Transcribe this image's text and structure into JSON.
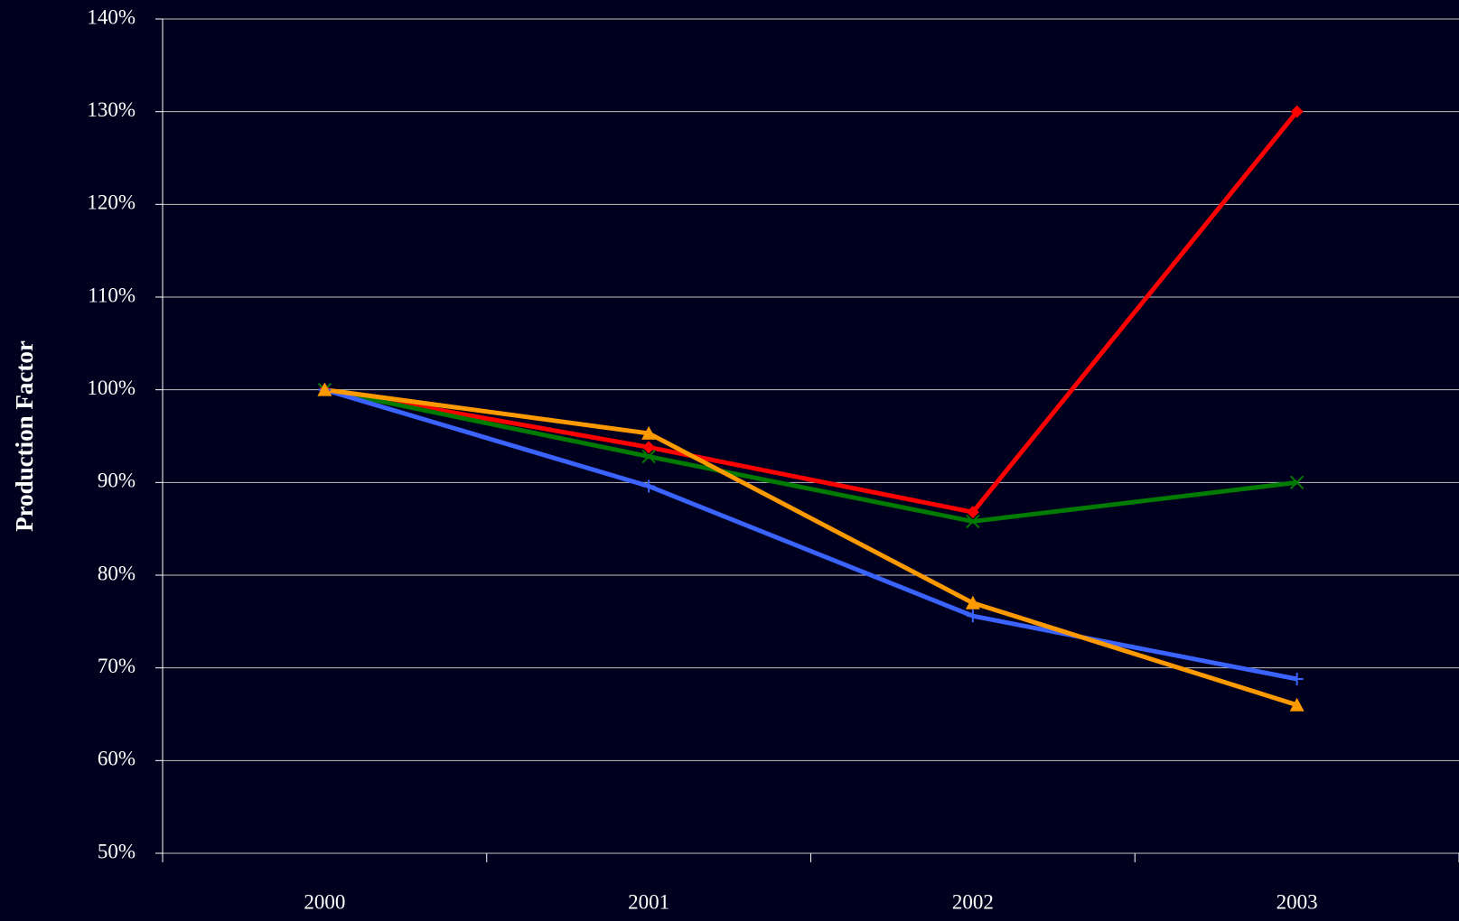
{
  "chart_data": {
    "type": "line",
    "y_axis_label": "Production Factor",
    "categories": [
      "2000",
      "2001",
      "2002",
      "2003"
    ],
    "series": [
      {
        "color": "#ff0000",
        "marker": "diamond",
        "values": [
          100,
          93.8,
          86.8,
          130
        ]
      },
      {
        "color": "#007a00",
        "marker": "x",
        "values": [
          100,
          92.8,
          85.8,
          90
        ]
      },
      {
        "color": "#3b63ff",
        "marker": "plus",
        "values": [
          100,
          89.6,
          75.6,
          68.8
        ]
      },
      {
        "color": "#ff9900",
        "marker": "triangle",
        "values": [
          100,
          95.3,
          77,
          66
        ]
      }
    ],
    "ylim": [
      50,
      140
    ],
    "yticks": [
      {
        "value": 50,
        "label": "50%"
      },
      {
        "value": 60,
        "label": "60%"
      },
      {
        "value": 70,
        "label": "70%"
      },
      {
        "value": 80,
        "label": "80%"
      },
      {
        "value": 90,
        "label": "90%"
      },
      {
        "value": 100,
        "label": "100%"
      },
      {
        "value": 110,
        "label": "110%"
      },
      {
        "value": 120,
        "label": "120%"
      },
      {
        "value": 130,
        "label": "130%"
      },
      {
        "value": 140,
        "label": "140%"
      }
    ],
    "grid": true
  }
}
